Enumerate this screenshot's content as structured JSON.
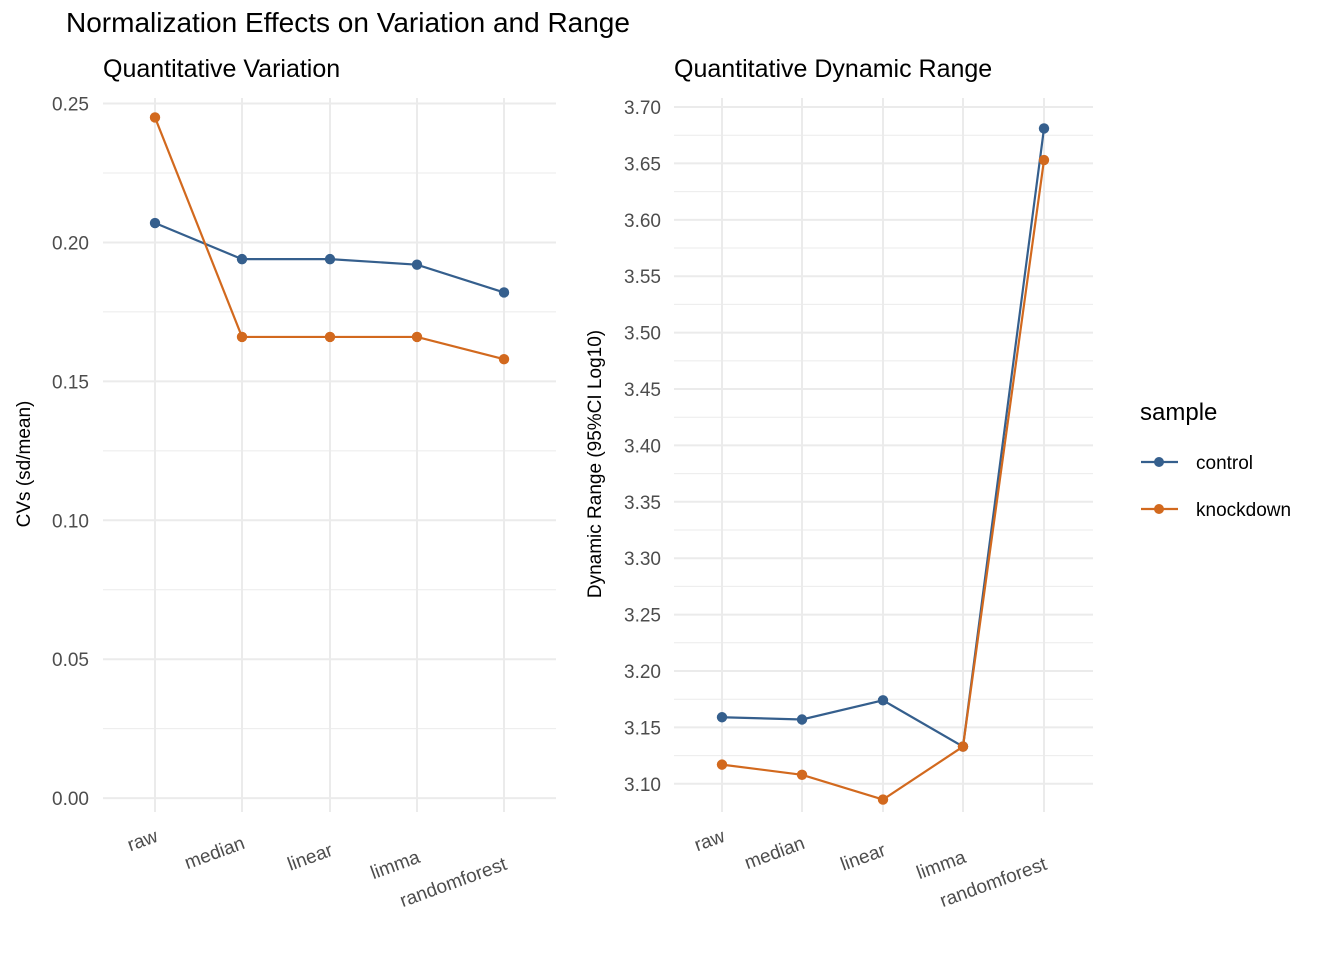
{
  "title": "Normalization Effects on Variation and Range",
  "colors": {
    "control": "#355F8D",
    "knockdown": "#D2691E",
    "grid": "#EBEBEB"
  },
  "legend": {
    "title": "sample",
    "items": [
      {
        "label": "control",
        "color": "#355F8D"
      },
      {
        "label": "knockdown",
        "color": "#D2691E"
      }
    ]
  },
  "chart_data": [
    {
      "type": "line",
      "title": "Quantitative Variation",
      "xlabel": "",
      "ylabel": "CVs (sd/mean)",
      "categories": [
        "raw",
        "median",
        "linear",
        "limma",
        "randomforest"
      ],
      "ylim": [
        -0.005,
        0.252
      ],
      "yticks": [
        0.0,
        0.05,
        0.1,
        0.15,
        0.2,
        0.25
      ],
      "ytick_labels": [
        "0.00",
        "0.05",
        "0.10",
        "0.15",
        "0.20",
        "0.25"
      ],
      "grid": true,
      "series": [
        {
          "name": "control",
          "values": [
            0.207,
            0.194,
            0.194,
            0.192,
            0.182
          ]
        },
        {
          "name": "knockdown",
          "values": [
            0.245,
            0.166,
            0.166,
            0.166,
            0.158
          ]
        }
      ]
    },
    {
      "type": "line",
      "title": "Quantitative Dynamic Range",
      "xlabel": "",
      "ylabel": "Dynamic Range (95%CI Log10)",
      "categories": [
        "raw",
        "median",
        "linear",
        "limma",
        "randomforest"
      ],
      "ylim": [
        3.075,
        3.708
      ],
      "yticks": [
        3.1,
        3.15,
        3.2,
        3.25,
        3.3,
        3.35,
        3.4,
        3.45,
        3.5,
        3.55,
        3.6,
        3.65,
        3.7
      ],
      "ytick_labels": [
        "3.10",
        "3.15",
        "3.20",
        "3.25",
        "3.30",
        "3.35",
        "3.40",
        "3.45",
        "3.50",
        "3.55",
        "3.60",
        "3.65",
        "3.70"
      ],
      "grid": true,
      "series": [
        {
          "name": "control",
          "values": [
            3.159,
            3.157,
            3.174,
            3.133,
            3.681
          ]
        },
        {
          "name": "knockdown",
          "values": [
            3.117,
            3.108,
            3.086,
            3.133,
            3.653
          ]
        }
      ]
    }
  ]
}
